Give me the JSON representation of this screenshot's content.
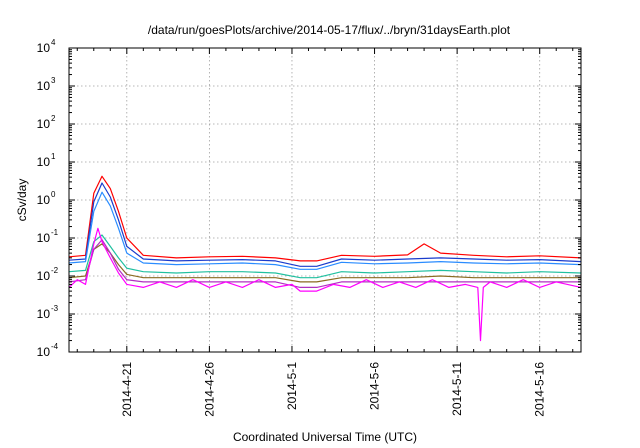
{
  "chart_data": {
    "type": "line",
    "title": "/data/run/goesPlots/archive/2014-05-17/flux/../bryn/31daysEarth.plot",
    "xlabel": "Coordinated Universal Time (UTC)",
    "ylabel": "cSv/day",
    "yscale": "log",
    "ylim": [
      0.0001,
      10000
    ],
    "y_ticks": [
      {
        "base": "10",
        "exp": "-4",
        "value": 0.0001
      },
      {
        "base": "10",
        "exp": "-3",
        "value": 0.001
      },
      {
        "base": "10",
        "exp": "-2",
        "value": 0.01
      },
      {
        "base": "10",
        "exp": "-1",
        "value": 0.1
      },
      {
        "base": "10",
        "exp": "0",
        "value": 1
      },
      {
        "base": "10",
        "exp": "1",
        "value": 10
      },
      {
        "base": "10",
        "exp": "2",
        "value": 100
      },
      {
        "base": "10",
        "exp": "3",
        "value": 1000
      },
      {
        "base": "10",
        "exp": "4",
        "value": 10000
      }
    ],
    "xlim": [
      "2014-04-17T12:00",
      "2014-05-18T12:00"
    ],
    "x_ticks": [
      "2014-4-21",
      "2014-4-26",
      "2014-5-1",
      "2014-5-6",
      "2014-5-11",
      "2014-5-16"
    ],
    "grid": true,
    "series": [
      {
        "color": "#ff0000",
        "x": [
          "2014-04-17T12:00",
          "2014-04-18T12:00",
          "2014-04-19T00:00",
          "2014-04-19T12:00",
          "2014-04-20T00:00",
          "2014-04-20T12:00",
          "2014-04-21T00:00",
          "2014-04-22T00:00",
          "2014-04-24T00:00",
          "2014-04-26T00:00",
          "2014-04-28T00:00",
          "2014-04-30T00:00",
          "2014-05-01T12:00",
          "2014-05-02T12:00",
          "2014-05-04T00:00",
          "2014-05-06T00:00",
          "2014-05-08T00:00",
          "2014-05-09T00:00",
          "2014-05-10T00:00",
          "2014-05-12T00:00",
          "2014-05-14T00:00",
          "2014-05-16T00:00",
          "2014-05-18T12:00"
        ],
        "y": [
          0.032,
          0.035,
          1.5,
          4.2,
          2.0,
          0.5,
          0.1,
          0.035,
          0.03,
          0.032,
          0.033,
          0.03,
          0.025,
          0.025,
          0.035,
          0.033,
          0.036,
          0.07,
          0.04,
          0.035,
          0.032,
          0.034,
          0.03
        ]
      },
      {
        "color": "#1a3ccc",
        "x": [
          "2014-04-17T12:00",
          "2014-04-18T12:00",
          "2014-04-19T00:00",
          "2014-04-19T12:00",
          "2014-04-20T00:00",
          "2014-04-20T12:00",
          "2014-04-21T00:00",
          "2014-04-22T00:00",
          "2014-04-24T00:00",
          "2014-04-26T00:00",
          "2014-04-28T00:00",
          "2014-04-30T00:00",
          "2014-05-01T12:00",
          "2014-05-02T12:00",
          "2014-05-04T00:00",
          "2014-05-06T00:00",
          "2014-05-08T00:00",
          "2014-05-10T00:00",
          "2014-05-12T00:00",
          "2014-05-14T00:00",
          "2014-05-16T00:00",
          "2014-05-18T12:00"
        ],
        "y": [
          0.026,
          0.028,
          0.9,
          2.8,
          1.2,
          0.3,
          0.06,
          0.028,
          0.025,
          0.026,
          0.027,
          0.025,
          0.018,
          0.018,
          0.028,
          0.026,
          0.028,
          0.03,
          0.028,
          0.026,
          0.027,
          0.024
        ]
      },
      {
        "color": "#2a8cff",
        "x": [
          "2014-04-17T12:00",
          "2014-04-18T12:00",
          "2014-04-19T00:00",
          "2014-04-19T12:00",
          "2014-04-20T00:00",
          "2014-04-20T12:00",
          "2014-04-21T00:00",
          "2014-04-22T00:00",
          "2014-04-24T00:00",
          "2014-04-26T00:00",
          "2014-04-28T00:00",
          "2014-04-30T00:00",
          "2014-05-01T12:00",
          "2014-05-02T12:00",
          "2014-05-04T00:00",
          "2014-05-06T00:00",
          "2014-05-08T00:00",
          "2014-05-10T00:00",
          "2014-05-12T00:00",
          "2014-05-14T00:00",
          "2014-05-16T00:00",
          "2014-05-18T12:00"
        ],
        "y": [
          0.022,
          0.024,
          0.5,
          1.6,
          0.7,
          0.18,
          0.04,
          0.022,
          0.02,
          0.021,
          0.022,
          0.02,
          0.015,
          0.015,
          0.023,
          0.021,
          0.022,
          0.024,
          0.022,
          0.021,
          0.022,
          0.02
        ]
      },
      {
        "color": "#20c0a0",
        "x": [
          "2014-04-17T12:00",
          "2014-04-18T12:00",
          "2014-04-19T00:00",
          "2014-04-19T12:00",
          "2014-04-20T00:00",
          "2014-04-20T12:00",
          "2014-04-21T00:00",
          "2014-04-22T00:00",
          "2014-04-24T00:00",
          "2014-04-26T00:00",
          "2014-04-28T00:00",
          "2014-04-30T00:00",
          "2014-05-01T12:00",
          "2014-05-02T12:00",
          "2014-05-04T00:00",
          "2014-05-06T00:00",
          "2014-05-08T00:00",
          "2014-05-10T00:00",
          "2014-05-12T00:00",
          "2014-05-14T00:00",
          "2014-05-16T00:00",
          "2014-05-18T12:00"
        ],
        "y": [
          0.013,
          0.014,
          0.08,
          0.12,
          0.06,
          0.03,
          0.016,
          0.013,
          0.012,
          0.013,
          0.013,
          0.012,
          0.009,
          0.009,
          0.013,
          0.012,
          0.013,
          0.014,
          0.013,
          0.012,
          0.013,
          0.012
        ]
      },
      {
        "color": "#8a6a20",
        "x": [
          "2014-04-17T12:00",
          "2014-04-18T12:00",
          "2014-04-19T00:00",
          "2014-04-19T12:00",
          "2014-04-20T00:00",
          "2014-04-20T12:00",
          "2014-04-21T00:00",
          "2014-04-22T00:00",
          "2014-04-24T00:00",
          "2014-04-26T00:00",
          "2014-04-28T00:00",
          "2014-04-30T00:00",
          "2014-05-01T12:00",
          "2014-05-02T12:00",
          "2014-05-04T00:00",
          "2014-05-06T00:00",
          "2014-05-08T00:00",
          "2014-05-10T00:00",
          "2014-05-12T00:00",
          "2014-05-14T00:00",
          "2014-05-16T00:00",
          "2014-05-18T12:00"
        ],
        "y": [
          0.009,
          0.01,
          0.05,
          0.07,
          0.04,
          0.02,
          0.011,
          0.009,
          0.009,
          0.009,
          0.009,
          0.009,
          0.007,
          0.007,
          0.009,
          0.009,
          0.009,
          0.01,
          0.009,
          0.009,
          0.009,
          0.009
        ]
      },
      {
        "color": "#b030c0",
        "x": [
          "2014-04-17T12:00",
          "2014-04-18T12:00",
          "2014-04-19T00:00",
          "2014-04-19T12:00",
          "2014-04-20T00:00",
          "2014-04-20T12:00",
          "2014-04-21T00:00",
          "2014-04-22T00:00",
          "2014-04-24T00:00",
          "2014-04-26T00:00",
          "2014-04-28T00:00",
          "2014-04-30T00:00",
          "2014-05-01T12:00",
          "2014-05-02T12:00",
          "2014-05-04T00:00",
          "2014-05-06T00:00",
          "2014-05-08T00:00",
          "2014-05-10T00:00",
          "2014-05-12T00:00",
          "2014-05-14T00:00",
          "2014-05-16T00:00",
          "2014-05-18T12:00"
        ],
        "y": [
          0.007,
          0.008,
          0.05,
          0.09,
          0.04,
          0.015,
          0.008,
          0.007,
          0.007,
          0.007,
          0.007,
          0.007,
          0.005,
          0.005,
          0.007,
          0.007,
          0.007,
          0.007,
          0.007,
          0.007,
          0.007,
          0.007
        ]
      },
      {
        "color": "#ff00ff",
        "x": [
          "2014-04-17T12:00",
          "2014-04-18T00:00",
          "2014-04-18T12:00",
          "2014-04-19T00:00",
          "2014-04-19T06:00",
          "2014-04-19T12:00",
          "2014-04-20T00:00",
          "2014-04-20T12:00",
          "2014-04-21T00:00",
          "2014-04-22T00:00",
          "2014-04-23T00:00",
          "2014-04-24T00:00",
          "2014-04-25T00:00",
          "2014-04-26T00:00",
          "2014-04-27T00:00",
          "2014-04-28T00:00",
          "2014-04-29T00:00",
          "2014-04-30T00:00",
          "2014-05-01T00:00",
          "2014-05-01T12:00",
          "2014-05-02T12:00",
          "2014-05-03T12:00",
          "2014-05-04T12:00",
          "2014-05-05T12:00",
          "2014-05-06T12:00",
          "2014-05-07T12:00",
          "2014-05-08T12:00",
          "2014-05-09T12:00",
          "2014-05-10T12:00",
          "2014-05-11T12:00",
          "2014-05-12T06:00",
          "2014-05-12T10:00",
          "2014-05-12T14:00",
          "2014-05-13T00:00",
          "2014-05-14T00:00",
          "2014-05-15T00:00",
          "2014-05-16T00:00",
          "2014-05-17T00:00",
          "2014-05-18T12:00"
        ],
        "y": [
          0.005,
          0.008,
          0.006,
          0.07,
          0.18,
          0.08,
          0.03,
          0.012,
          0.006,
          0.005,
          0.007,
          0.005,
          0.008,
          0.005,
          0.007,
          0.005,
          0.008,
          0.005,
          0.006,
          0.004,
          0.004,
          0.006,
          0.005,
          0.008,
          0.005,
          0.007,
          0.005,
          0.008,
          0.005,
          0.006,
          0.005,
          0.0002,
          0.005,
          0.007,
          0.005,
          0.008,
          0.005,
          0.007,
          0.005
        ]
      }
    ]
  }
}
